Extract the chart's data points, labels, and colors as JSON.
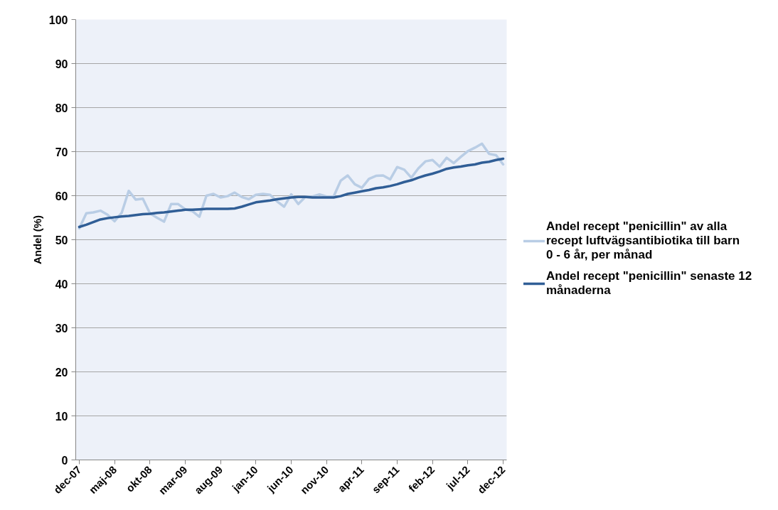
{
  "chart_data": {
    "type": "line",
    "ylabel": "Andel (%)",
    "categories": [
      "dec-07",
      null,
      null,
      null,
      null,
      "maj-08",
      null,
      null,
      null,
      null,
      "okt-08",
      null,
      null,
      null,
      null,
      "mar-09",
      null,
      null,
      null,
      null,
      "aug-09",
      null,
      null,
      null,
      null,
      "jan-10",
      null,
      null,
      null,
      null,
      "jun-10",
      null,
      null,
      null,
      null,
      "nov-10",
      null,
      null,
      null,
      null,
      "apr-11",
      null,
      null,
      null,
      null,
      "sep-11",
      null,
      null,
      null,
      null,
      "feb-12",
      null,
      null,
      null,
      null,
      "jul-12",
      null,
      null,
      null,
      null,
      "dec-12"
    ],
    "series": [
      {
        "name": "Andel recept \"penicillin\" av alla recept luftvägsantibiotika till barn 0 - 6 år, per månad",
        "color": "#b9cde5",
        "values": [
          52.6,
          56.0,
          56.2,
          56.6,
          55.7,
          54.2,
          56.1,
          61.1,
          59.1,
          59.3,
          56.0,
          55.0,
          54.1,
          58.1,
          58.1,
          56.9,
          56.5,
          55.2,
          60.0,
          60.4,
          59.6,
          59.9,
          60.7,
          59.7,
          59.2,
          60.2,
          60.4,
          60.2,
          58.7,
          57.5,
          60.3,
          58.1,
          59.7,
          59.8,
          60.3,
          59.8,
          59.8,
          63.4,
          64.6,
          62.6,
          61.8,
          63.8,
          64.5,
          64.6,
          63.7,
          66.5,
          65.9,
          64.1,
          66.2,
          67.8,
          68.1,
          66.6,
          68.6,
          67.4,
          68.8,
          70.1,
          70.9,
          71.8,
          69.5,
          69.2,
          67.1
        ]
      },
      {
        "name": "Andel recept \"penicillin\" senaste 12 månaderna",
        "color": "#305e96",
        "values": [
          52.9,
          53.4,
          54.0,
          54.6,
          54.9,
          55.1,
          55.3,
          55.4,
          55.6,
          55.8,
          55.9,
          56.1,
          56.2,
          56.4,
          56.6,
          56.8,
          56.8,
          56.9,
          57.0,
          57.0,
          57.0,
          57.0,
          57.1,
          57.5,
          58.0,
          58.5,
          58.7,
          58.9,
          59.2,
          59.4,
          59.6,
          59.7,
          59.7,
          59.6,
          59.6,
          59.6,
          59.6,
          59.9,
          60.4,
          60.7,
          61.0,
          61.3,
          61.7,
          61.9,
          62.2,
          62.6,
          63.1,
          63.5,
          64.1,
          64.6,
          65.0,
          65.5,
          66.1,
          66.4,
          66.6,
          66.9,
          67.1,
          67.5,
          67.7,
          68.1,
          68.4
        ]
      }
    ],
    "ylim": [
      0,
      100
    ],
    "yticks": [
      0,
      10,
      20,
      30,
      40,
      50,
      60,
      70,
      80,
      90,
      100
    ],
    "grid": "y",
    "legend": "right",
    "line_style": "solid"
  }
}
